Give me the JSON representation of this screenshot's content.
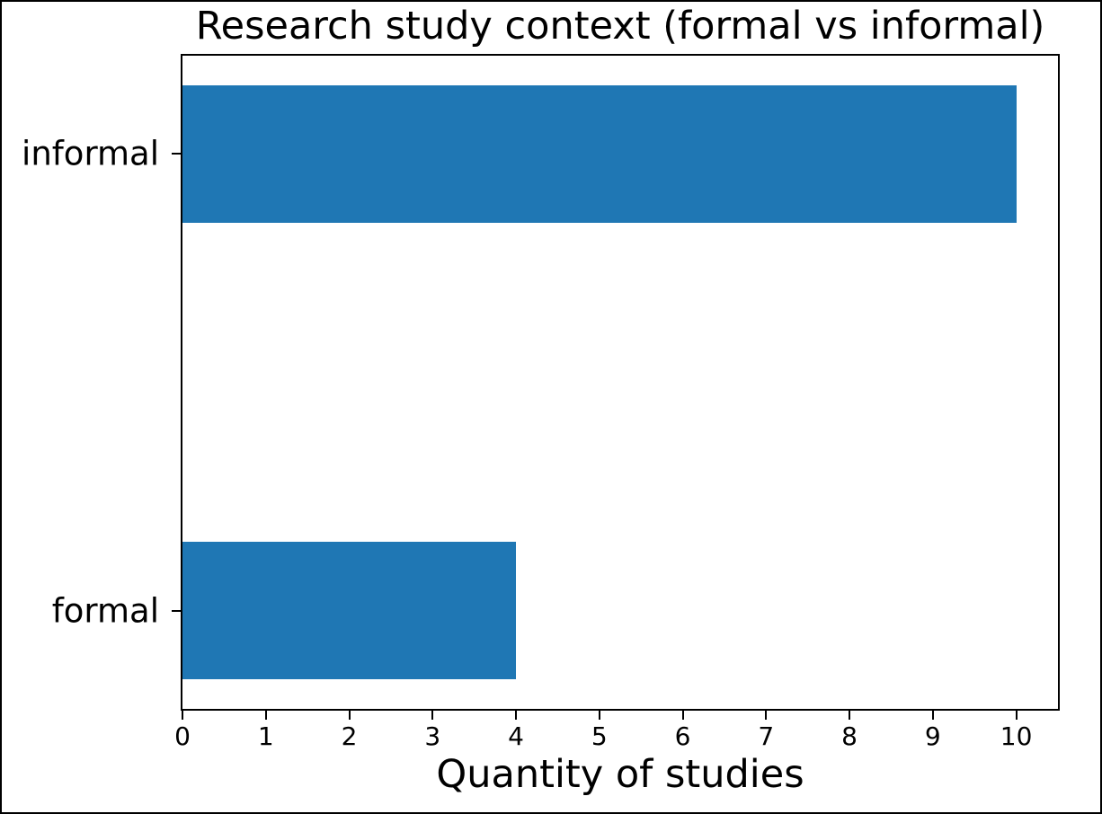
{
  "figure": {
    "background": "#ffffff",
    "border_color": "#000000"
  },
  "chart_data": {
    "type": "bar",
    "orientation": "horizontal",
    "title": "Research study context (formal vs informal)",
    "xlabel": "Quantity of studies",
    "ylabel": "",
    "categories": [
      "informal",
      "formal"
    ],
    "values": [
      10,
      4
    ],
    "xlim": [
      0,
      10.5
    ],
    "xticks": [
      0,
      1,
      2,
      3,
      4,
      5,
      6,
      7,
      8,
      9,
      10
    ],
    "bar_color": "#1f77b4",
    "axis_color": "#000000",
    "text_color": "#000000",
    "grid": false,
    "legend": null
  }
}
